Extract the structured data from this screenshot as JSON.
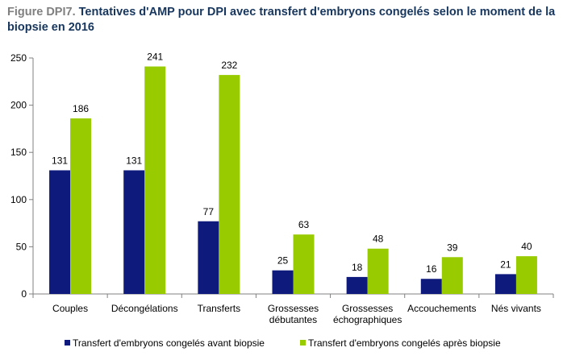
{
  "figure": {
    "title_prefix": "Figure DPI7.",
    "title_text": " Tentatives d'AMP pour DPI avec transfert d'embryons congelés selon le moment de la biopsie en 2016"
  },
  "chart_data": {
    "type": "bar",
    "categories": [
      [
        "Couples"
      ],
      [
        "Décongélations"
      ],
      [
        "Transferts"
      ],
      [
        "Grossesses",
        "débutantes"
      ],
      [
        "Grossesses",
        "échographiques"
      ],
      [
        "Accouchements"
      ],
      [
        "Nés vivants"
      ]
    ],
    "series": [
      {
        "name": "Transfert d'embryons congelés avant biopsie",
        "color": "#0f1a7d",
        "values": [
          131,
          131,
          77,
          25,
          18,
          16,
          21
        ]
      },
      {
        "name": "Transfert d'embryons congelés après biopsie",
        "color": "#99cc00",
        "values": [
          186,
          241,
          232,
          63,
          48,
          39,
          40
        ]
      }
    ],
    "ylim": [
      0,
      250
    ],
    "yticks": [
      0,
      50,
      100,
      150,
      200,
      250
    ],
    "grid": false,
    "legend": "bottom"
  }
}
